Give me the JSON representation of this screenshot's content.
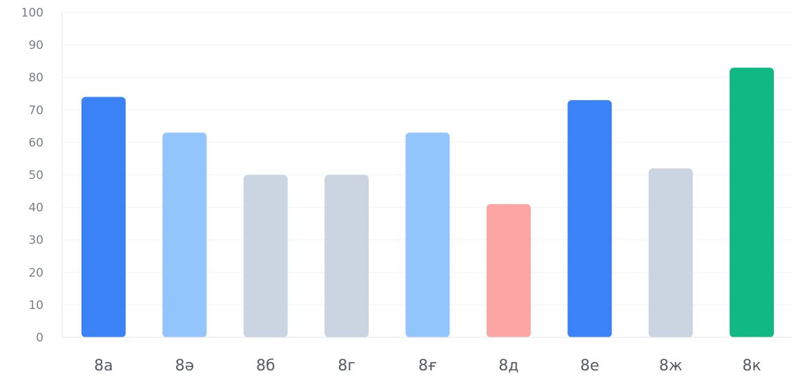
{
  "chart_data": {
    "type": "bar",
    "title": "",
    "xlabel": "",
    "ylabel": "",
    "categories": [
      "8а",
      "8ә",
      "8б",
      "8г",
      "8ғ",
      "8д",
      "8е",
      "8ж",
      "8к"
    ],
    "values": [
      74,
      63,
      50,
      50,
      63,
      41,
      73,
      52,
      83
    ],
    "bar_colors": [
      "#3b82f6",
      "#93c5fd",
      "#cbd5e1",
      "#cbd5e1",
      "#93c5fd",
      "#fca5a5",
      "#3b82f6",
      "#cbd5e1",
      "#10b981"
    ],
    "ylim": [
      0,
      100
    ],
    "yticks": [
      0,
      10,
      20,
      30,
      40,
      50,
      60,
      70,
      80,
      90,
      100
    ],
    "grid": true,
    "legend": "none"
  }
}
